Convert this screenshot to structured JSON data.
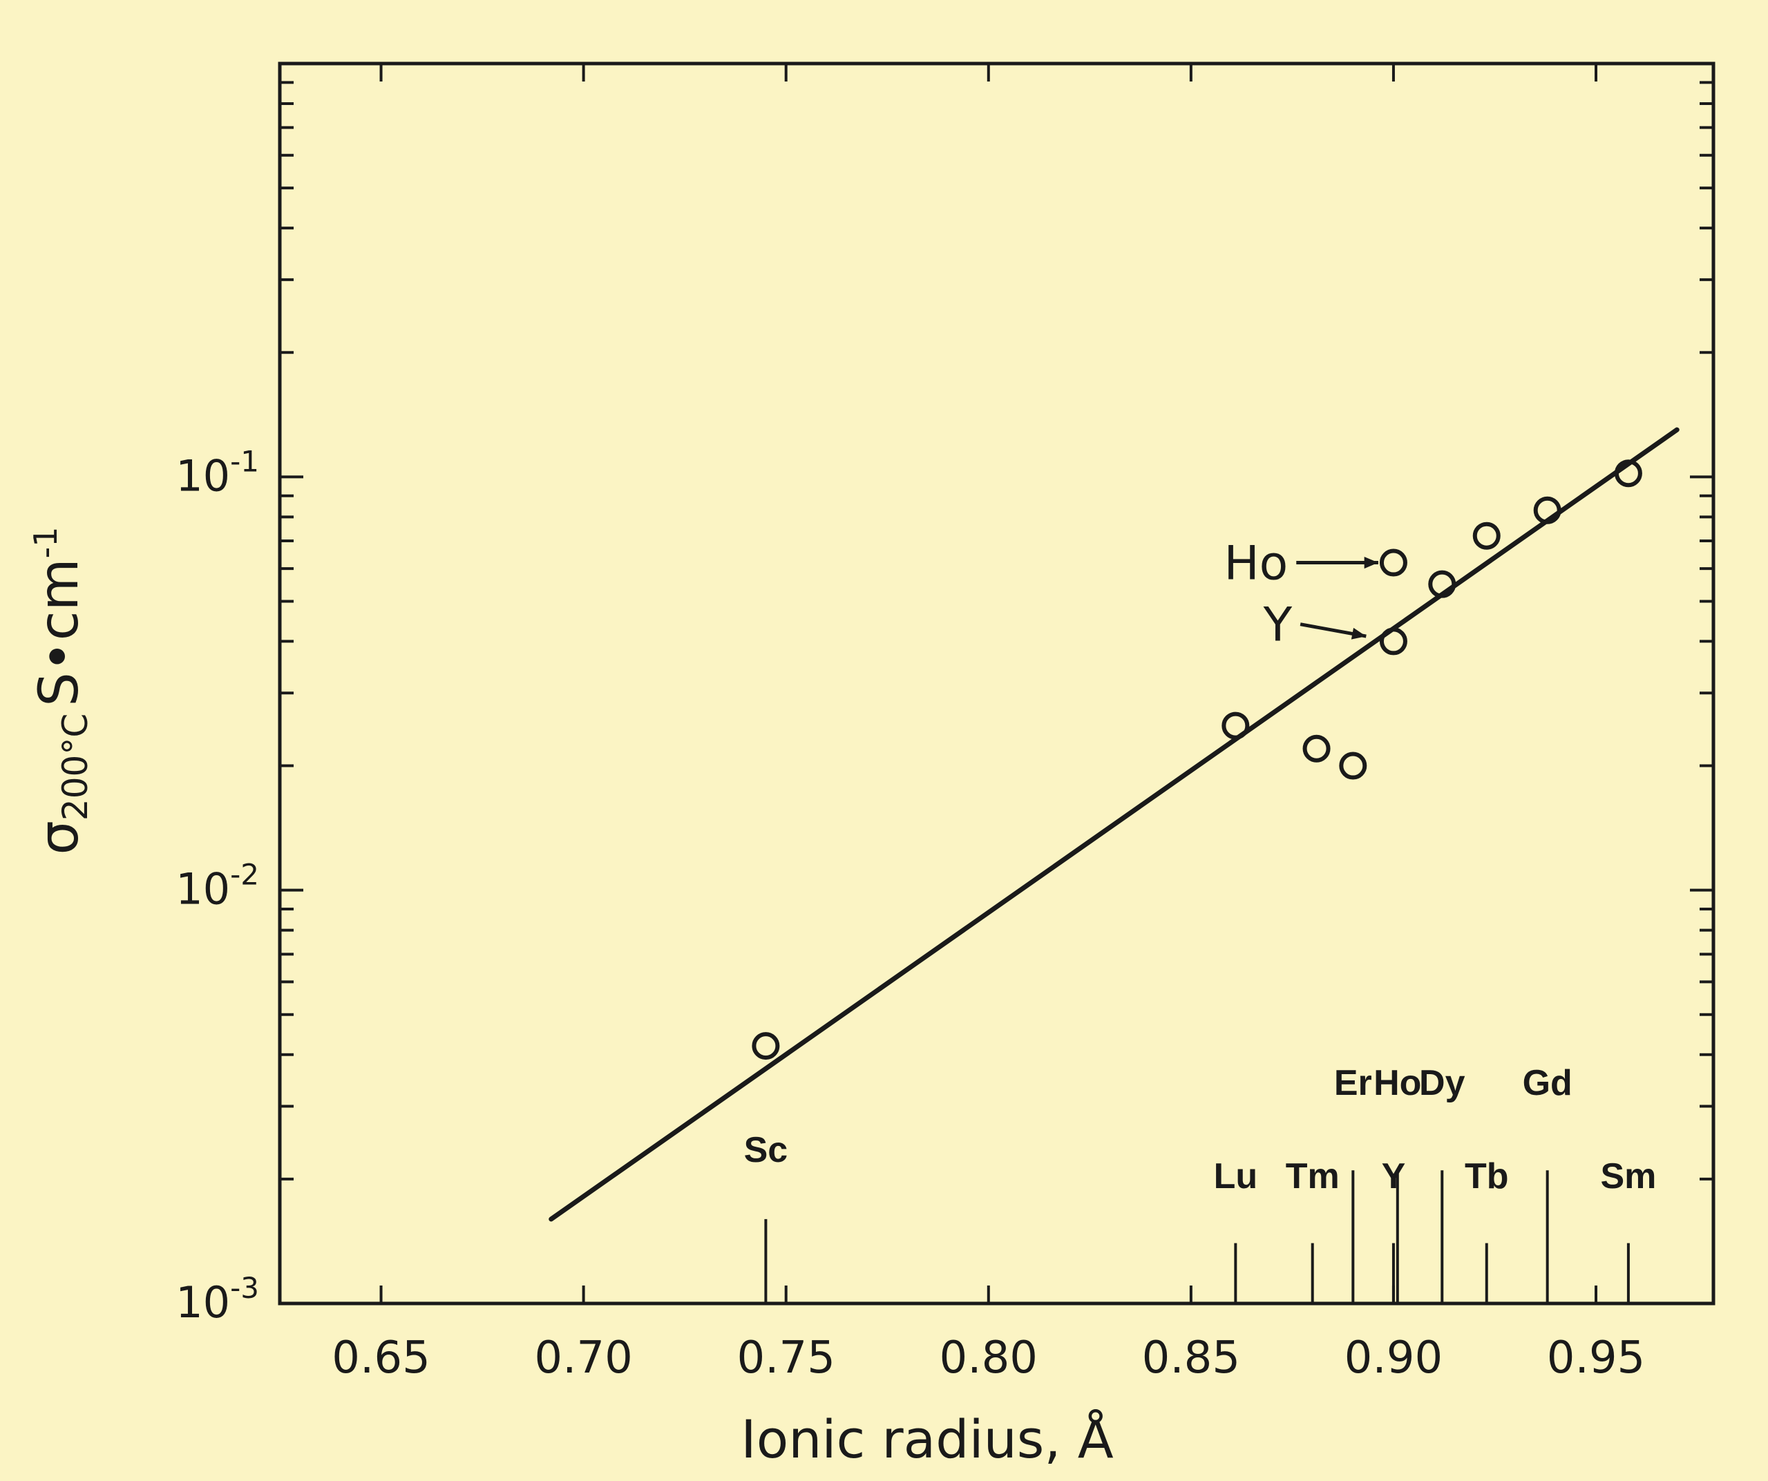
{
  "chart_data": {
    "type": "scatter",
    "xlabel": "Ionic radius, Å",
    "ylabel": {
      "symbol": "σ",
      "subscript": "200°C",
      "unit": "S•cm",
      "exponent": "-1"
    },
    "xlim": [
      0.625,
      0.979
    ],
    "ylim": [
      0.001,
      1
    ],
    "y_scale": "log",
    "x_ticks": [
      0.65,
      0.7,
      0.75,
      0.8,
      0.85,
      0.9,
      0.95
    ],
    "x_tick_labels": [
      "0.65",
      "0.70",
      "0.75",
      "0.80",
      "0.85",
      "0.90",
      "0.95"
    ],
    "y_major_ticks": [
      {
        "value": 0.001,
        "base": "10",
        "exp": "-3"
      },
      {
        "value": 0.01,
        "base": "10",
        "exp": "-2"
      },
      {
        "value": 0.1,
        "base": "10",
        "exp": "-1"
      }
    ],
    "grid": false,
    "series": [
      {
        "points": [
          {
            "x": 0.745,
            "y": 0.0042
          },
          {
            "x": 0.861,
            "y": 0.025
          },
          {
            "x": 0.881,
            "y": 0.022
          },
          {
            "x": 0.89,
            "y": 0.02
          },
          {
            "x": 0.9,
            "y": 0.062
          },
          {
            "x": 0.9,
            "y": 0.04
          },
          {
            "x": 0.912,
            "y": 0.055
          },
          {
            "x": 0.923,
            "y": 0.072
          },
          {
            "x": 0.938,
            "y": 0.083
          },
          {
            "x": 0.958,
            "y": 0.102
          }
        ]
      }
    ],
    "fit_line": {
      "x": [
        0.692,
        0.97
      ],
      "y": [
        0.0016,
        0.13
      ]
    },
    "annotations": [
      {
        "text": "Ho",
        "from": {
          "x": 0.876,
          "y": 0.062
        },
        "to": {
          "x": 0.9,
          "y": 0.062
        }
      },
      {
        "text": "Y",
        "from": {
          "x": 0.877,
          "y": 0.044
        },
        "to": {
          "x": 0.897,
          "y": 0.041
        }
      }
    ],
    "element_markers": [
      {
        "label": "Sc",
        "x": 0.745,
        "top": 0.0016,
        "label_y": 0.0022
      },
      {
        "label": "Lu",
        "x": 0.861,
        "top": 0.0014,
        "label_y": 0.0019
      },
      {
        "label": "Tm",
        "x": 0.88,
        "top": 0.0014,
        "label_y": 0.0019
      },
      {
        "label": "Er",
        "x": 0.89,
        "top": 0.0021,
        "label_y": 0.0032
      },
      {
        "label": "Ho",
        "x": 0.901,
        "top": 0.0021,
        "label_y": 0.0032
      },
      {
        "label": "Y",
        "x": 0.9,
        "top": 0.0014,
        "label_y": 0.0019
      },
      {
        "label": "Dy",
        "x": 0.912,
        "top": 0.0021,
        "label_y": 0.0032
      },
      {
        "label": "Tb",
        "x": 0.923,
        "top": 0.0014,
        "label_y": 0.0019
      },
      {
        "label": "Gd",
        "x": 0.938,
        "top": 0.0021,
        "label_y": 0.0032
      },
      {
        "label": "Sm",
        "x": 0.958,
        "top": 0.0014,
        "label_y": 0.0019
      }
    ]
  }
}
